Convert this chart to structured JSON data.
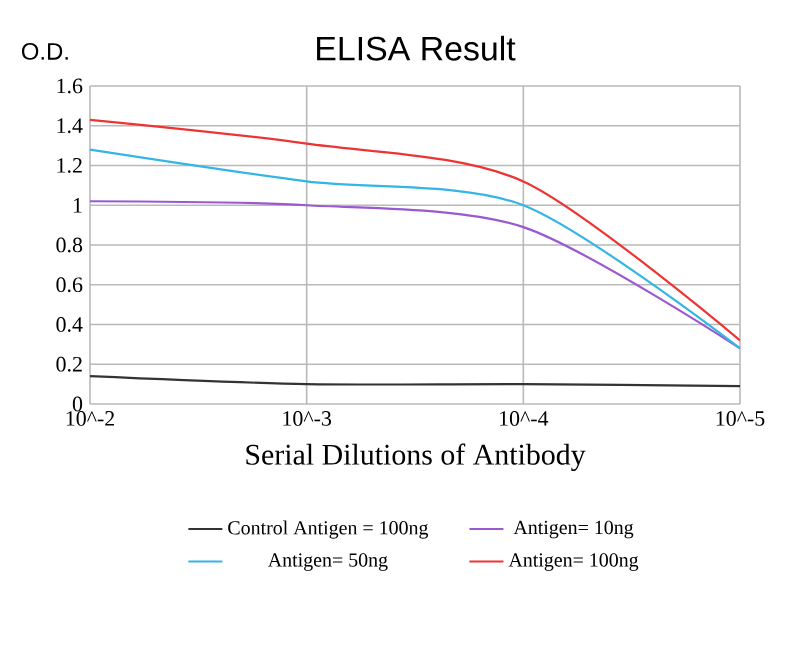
{
  "chart_data": {
    "type": "line",
    "title": "ELISA Result",
    "xlabel": "Serial Dilutions of Antibody",
    "ylabel": "O.D.",
    "categories": [
      "10^-2",
      "10^-3",
      "10^-4",
      "10^-5"
    ],
    "series": [
      {
        "name": "Control Antigen = 100ng",
        "color": "#333333",
        "values": [
          0.14,
          0.1,
          0.1,
          0.09
        ]
      },
      {
        "name": "Antigen= 10ng",
        "color": "#9b59d0",
        "values": [
          1.02,
          1.0,
          0.89,
          0.28
        ]
      },
      {
        "name": "Antigen= 50ng",
        "color": "#33b5e5",
        "values": [
          1.28,
          1.12,
          1.0,
          0.28
        ]
      },
      {
        "name": "Antigen= 100ng",
        "color": "#ee3333",
        "values": [
          1.43,
          1.31,
          1.12,
          0.32
        ]
      }
    ],
    "ylim": [
      0,
      1.6
    ],
    "yticks": [
      0,
      0.2,
      0.4,
      0.6,
      0.8,
      1,
      1.2,
      1.4,
      1.6
    ],
    "grid": true,
    "legend": "bottom"
  }
}
